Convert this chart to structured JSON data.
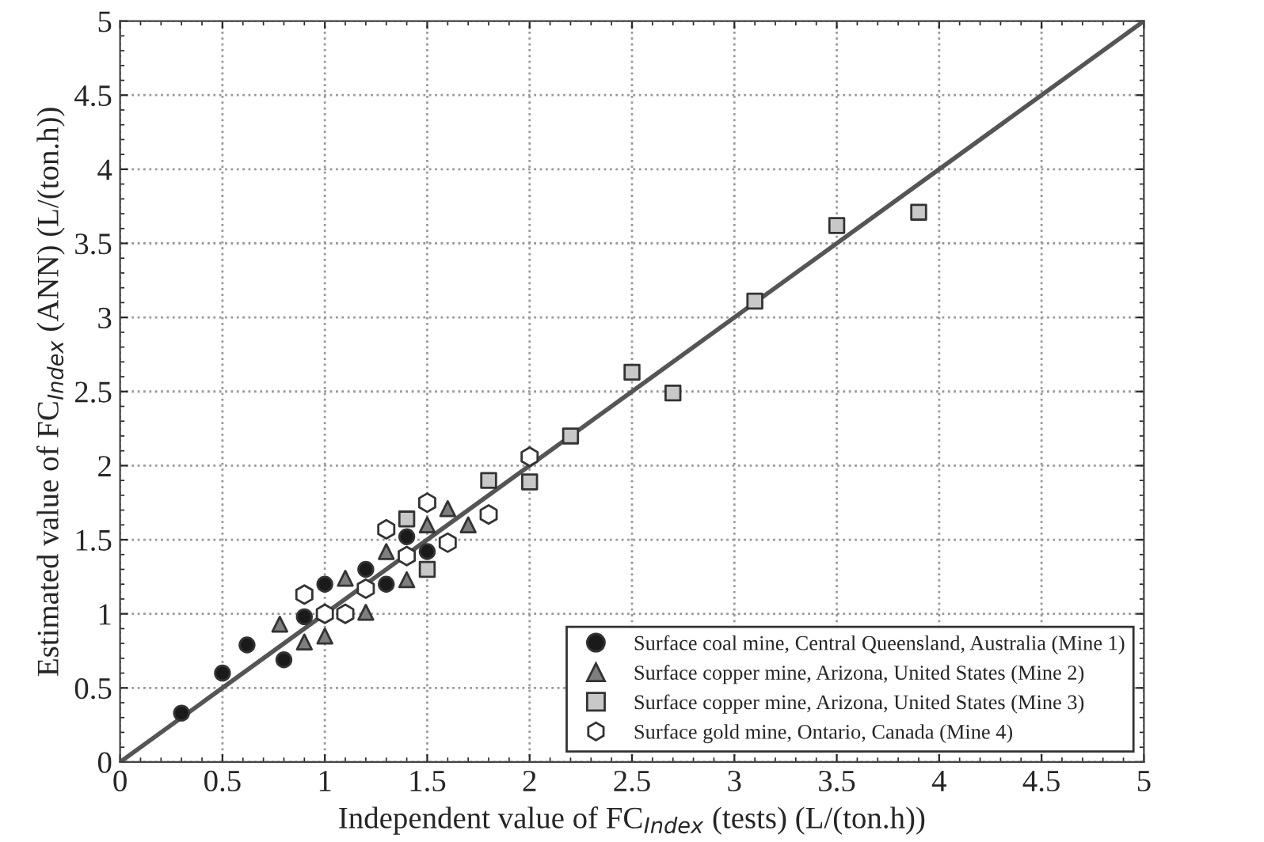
{
  "chart_data": {
    "type": "scatter",
    "xlabel": "Independent value of FC$_{Index}$ (tests) (L/(ton.h))",
    "ylabel": "Estimated value of FC$_{Index}$ (ANN) (L/(ton.h))",
    "xlim": [
      0,
      5
    ],
    "ylim": [
      0,
      5
    ],
    "xticks": [
      0,
      0.5,
      1,
      1.5,
      2,
      2.5,
      3,
      3.5,
      4,
      4.5,
      5
    ],
    "yticks": [
      0,
      0.5,
      1,
      1.5,
      2,
      2.5,
      3,
      3.5,
      4,
      4.5,
      5
    ],
    "grid": true,
    "legend": "bottom right",
    "series": [
      {
        "type": "line",
        "color": "#555555",
        "x": [
          0,
          5
        ],
        "values": [
          0,
          5
        ],
        "marker": "none",
        "line_style": "solid"
      },
      {
        "name": "Surface coal mine, Central Queensland, Australia (Mine 1)",
        "color": "#1a1a1a",
        "marker": "circle",
        "x": [
          0.3,
          0.5,
          0.62,
          0.8,
          0.9,
          1.0,
          1.2,
          1.3,
          1.4,
          1.5
        ],
        "values": [
          0.33,
          0.6,
          0.79,
          0.69,
          0.98,
          1.2,
          1.3,
          1.2,
          1.52,
          1.42
        ]
      },
      {
        "name": "Surface copper mine, Arizona, United States (Mine 2)",
        "color": "#7f7f7f",
        "marker": "triangle",
        "x": [
          0.78,
          0.9,
          1.0,
          1.1,
          1.2,
          1.3,
          1.4,
          1.5,
          1.6,
          1.7
        ],
        "values": [
          0.93,
          0.81,
          0.85,
          1.24,
          1.01,
          1.42,
          1.23,
          1.6,
          1.71,
          1.6
        ]
      },
      {
        "name": "Surface copper mine, Arizona, United States (Mine 3)",
        "color": "#c8c8c8",
        "marker": "square",
        "x": [
          1.4,
          1.5,
          1.8,
          2.0,
          2.2,
          2.5,
          2.7,
          3.1,
          3.5,
          3.9
        ],
        "values": [
          1.64,
          1.3,
          1.9,
          1.89,
          2.2,
          2.63,
          2.49,
          3.11,
          3.62,
          3.71
        ]
      },
      {
        "name": "Surface gold mine, Ontario, Canada (Mine 4)",
        "color": "#ffffff",
        "x": [
          0.9,
          1.0,
          1.1,
          1.2,
          1.3,
          1.4,
          1.5,
          1.6,
          1.8,
          2.0
        ],
        "values": [
          1.13,
          1.0,
          1.0,
          1.17,
          1.57,
          1.39,
          1.75,
          1.48,
          1.67,
          2.06
        ]
      }
    ]
  }
}
